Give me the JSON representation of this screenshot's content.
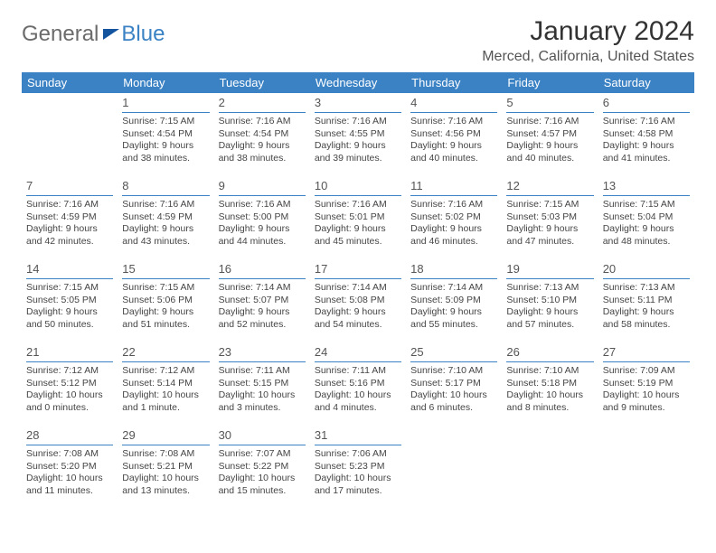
{
  "logo": {
    "text1": "General",
    "text2": "Blue"
  },
  "title": "January 2024",
  "location": "Merced, California, United States",
  "header_bg": "#3b82c4",
  "header_fg": "#ffffff",
  "rule_color": "#3b82c4",
  "weekdays": [
    "Sunday",
    "Monday",
    "Tuesday",
    "Wednesday",
    "Thursday",
    "Friday",
    "Saturday"
  ],
  "weeks": [
    [
      null,
      {
        "n": "1",
        "sr": "7:15 AM",
        "ss": "4:54 PM",
        "dl": "9 hours and 38 minutes."
      },
      {
        "n": "2",
        "sr": "7:16 AM",
        "ss": "4:54 PM",
        "dl": "9 hours and 38 minutes."
      },
      {
        "n": "3",
        "sr": "7:16 AM",
        "ss": "4:55 PM",
        "dl": "9 hours and 39 minutes."
      },
      {
        "n": "4",
        "sr": "7:16 AM",
        "ss": "4:56 PM",
        "dl": "9 hours and 40 minutes."
      },
      {
        "n": "5",
        "sr": "7:16 AM",
        "ss": "4:57 PM",
        "dl": "9 hours and 40 minutes."
      },
      {
        "n": "6",
        "sr": "7:16 AM",
        "ss": "4:58 PM",
        "dl": "9 hours and 41 minutes."
      }
    ],
    [
      {
        "n": "7",
        "sr": "7:16 AM",
        "ss": "4:59 PM",
        "dl": "9 hours and 42 minutes."
      },
      {
        "n": "8",
        "sr": "7:16 AM",
        "ss": "4:59 PM",
        "dl": "9 hours and 43 minutes."
      },
      {
        "n": "9",
        "sr": "7:16 AM",
        "ss": "5:00 PM",
        "dl": "9 hours and 44 minutes."
      },
      {
        "n": "10",
        "sr": "7:16 AM",
        "ss": "5:01 PM",
        "dl": "9 hours and 45 minutes."
      },
      {
        "n": "11",
        "sr": "7:16 AM",
        "ss": "5:02 PM",
        "dl": "9 hours and 46 minutes."
      },
      {
        "n": "12",
        "sr": "7:15 AM",
        "ss": "5:03 PM",
        "dl": "9 hours and 47 minutes."
      },
      {
        "n": "13",
        "sr": "7:15 AM",
        "ss": "5:04 PM",
        "dl": "9 hours and 48 minutes."
      }
    ],
    [
      {
        "n": "14",
        "sr": "7:15 AM",
        "ss": "5:05 PM",
        "dl": "9 hours and 50 minutes."
      },
      {
        "n": "15",
        "sr": "7:15 AM",
        "ss": "5:06 PM",
        "dl": "9 hours and 51 minutes."
      },
      {
        "n": "16",
        "sr": "7:14 AM",
        "ss": "5:07 PM",
        "dl": "9 hours and 52 minutes."
      },
      {
        "n": "17",
        "sr": "7:14 AM",
        "ss": "5:08 PM",
        "dl": "9 hours and 54 minutes."
      },
      {
        "n": "18",
        "sr": "7:14 AM",
        "ss": "5:09 PM",
        "dl": "9 hours and 55 minutes."
      },
      {
        "n": "19",
        "sr": "7:13 AM",
        "ss": "5:10 PM",
        "dl": "9 hours and 57 minutes."
      },
      {
        "n": "20",
        "sr": "7:13 AM",
        "ss": "5:11 PM",
        "dl": "9 hours and 58 minutes."
      }
    ],
    [
      {
        "n": "21",
        "sr": "7:12 AM",
        "ss": "5:12 PM",
        "dl": "10 hours and 0 minutes."
      },
      {
        "n": "22",
        "sr": "7:12 AM",
        "ss": "5:14 PM",
        "dl": "10 hours and 1 minute."
      },
      {
        "n": "23",
        "sr": "7:11 AM",
        "ss": "5:15 PM",
        "dl": "10 hours and 3 minutes."
      },
      {
        "n": "24",
        "sr": "7:11 AM",
        "ss": "5:16 PM",
        "dl": "10 hours and 4 minutes."
      },
      {
        "n": "25",
        "sr": "7:10 AM",
        "ss": "5:17 PM",
        "dl": "10 hours and 6 minutes."
      },
      {
        "n": "26",
        "sr": "7:10 AM",
        "ss": "5:18 PM",
        "dl": "10 hours and 8 minutes."
      },
      {
        "n": "27",
        "sr": "7:09 AM",
        "ss": "5:19 PM",
        "dl": "10 hours and 9 minutes."
      }
    ],
    [
      {
        "n": "28",
        "sr": "7:08 AM",
        "ss": "5:20 PM",
        "dl": "10 hours and 11 minutes."
      },
      {
        "n": "29",
        "sr": "7:08 AM",
        "ss": "5:21 PM",
        "dl": "10 hours and 13 minutes."
      },
      {
        "n": "30",
        "sr": "7:07 AM",
        "ss": "5:22 PM",
        "dl": "10 hours and 15 minutes."
      },
      {
        "n": "31",
        "sr": "7:06 AM",
        "ss": "5:23 PM",
        "dl": "10 hours and 17 minutes."
      },
      null,
      null,
      null
    ]
  ],
  "labels": {
    "sunrise": "Sunrise: ",
    "sunset": "Sunset: ",
    "daylight": "Daylight: "
  }
}
